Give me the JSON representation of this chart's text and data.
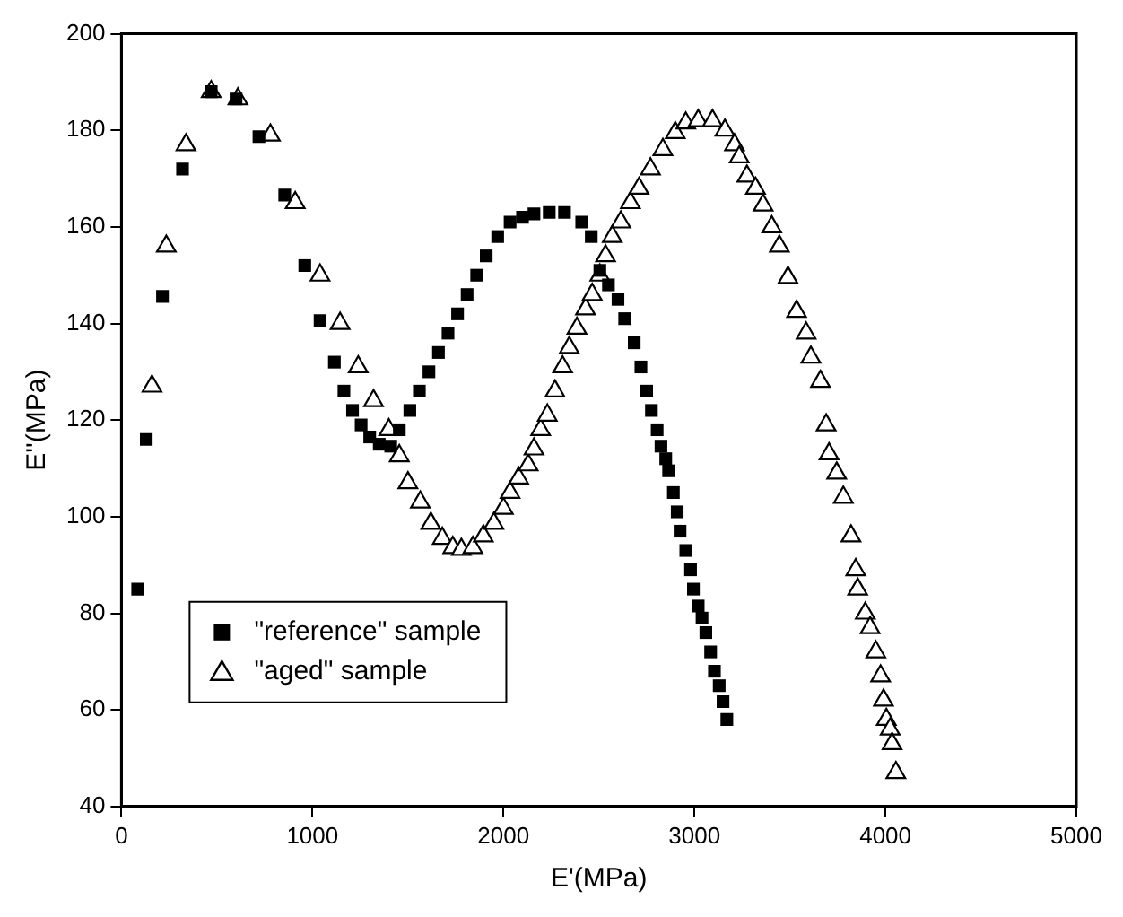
{
  "chart_data": {
    "type": "scatter",
    "xlabel": "E'(MPa)",
    "ylabel": "E''(MPa)",
    "xlim": [
      0,
      5000
    ],
    "xticks": [
      0,
      1000,
      2000,
      3000,
      4000,
      5000
    ],
    "ylim": [
      40,
      200
    ],
    "yticks": [
      40,
      60,
      80,
      100,
      120,
      140,
      160,
      180,
      200
    ],
    "grid": false,
    "legend": "bottom left",
    "series": [
      {
        "name": "\"reference\" sample",
        "color": "#000000",
        "marker": "square",
        "x": [
          85,
          130,
          215,
          320,
          470,
          600,
          720,
          855,
          960,
          1040,
          1115,
          1165,
          1210,
          1255,
          1300,
          1350,
          1410,
          1455,
          1510,
          1560,
          1610,
          1660,
          1710,
          1760,
          1810,
          1860,
          1910,
          1970,
          2035,
          2100,
          2160,
          2240,
          2320,
          2410,
          2460,
          2505,
          2550,
          2600,
          2635,
          2685,
          2720,
          2750,
          2775,
          2805,
          2825,
          2850,
          2865,
          2890,
          2910,
          2925,
          2955,
          2980,
          2995,
          3020,
          3040,
          3060,
          3085,
          3105,
          3130,
          3150,
          3170
        ],
        "values": [
          85,
          116,
          145.6,
          172,
          188,
          186.5,
          178.7,
          166.6,
          152,
          140.6,
          132,
          126,
          122,
          119,
          116.5,
          115,
          114.6,
          118,
          122,
          126,
          130,
          134,
          138,
          142,
          146,
          150,
          154,
          158,
          161,
          162,
          162.7,
          163,
          163,
          161,
          158,
          151,
          148,
          145,
          141,
          136,
          131,
          126,
          122,
          118,
          114.6,
          112,
          109.5,
          105,
          101,
          97,
          93,
          89,
          85,
          81.5,
          79,
          76,
          72,
          68,
          65,
          61.7,
          58
        ]
      },
      {
        "name": "\"aged\" sample",
        "color": "#000000",
        "marker": "triangle",
        "x": [
          160,
          235,
          338,
          470,
          610,
          780,
          910,
          1040,
          1145,
          1240,
          1320,
          1400,
          1455,
          1500,
          1565,
          1620,
          1680,
          1735,
          1780,
          1840,
          1895,
          1950,
          2000,
          2035,
          2080,
          2130,
          2160,
          2195,
          2230,
          2270,
          2310,
          2345,
          2385,
          2430,
          2465,
          2505,
          2535,
          2570,
          2615,
          2665,
          2710,
          2770,
          2835,
          2900,
          2955,
          3020,
          3095,
          3160,
          3210,
          3235,
          3275,
          3320,
          3360,
          3405,
          3445,
          3490,
          3535,
          3585,
          3610,
          3660,
          3690,
          3705,
          3745,
          3780,
          3820,
          3845,
          3855,
          3895,
          3920,
          3950,
          3975,
          3990,
          4005,
          4025,
          4035,
          4055
        ],
        "values": [
          127,
          156,
          177,
          188,
          186.5,
          179,
          165,
          150,
          140,
          131,
          124,
          118,
          112.6,
          107,
          103,
          98.6,
          95.5,
          93.6,
          93.2,
          93.6,
          96,
          98.6,
          101.7,
          105,
          108,
          110.7,
          114,
          118,
          121,
          126,
          131,
          135,
          139,
          143,
          146,
          150,
          154,
          158,
          161,
          165,
          168,
          172,
          176,
          179.5,
          181.5,
          182,
          182,
          180,
          177,
          174.5,
          170.5,
          168,
          164.5,
          160,
          156,
          149.5,
          142.5,
          138,
          133,
          128,
          119,
          113,
          109,
          104,
          96,
          89,
          85,
          80,
          77,
          72,
          67,
          62,
          58,
          56,
          53,
          47
        ]
      }
    ]
  }
}
